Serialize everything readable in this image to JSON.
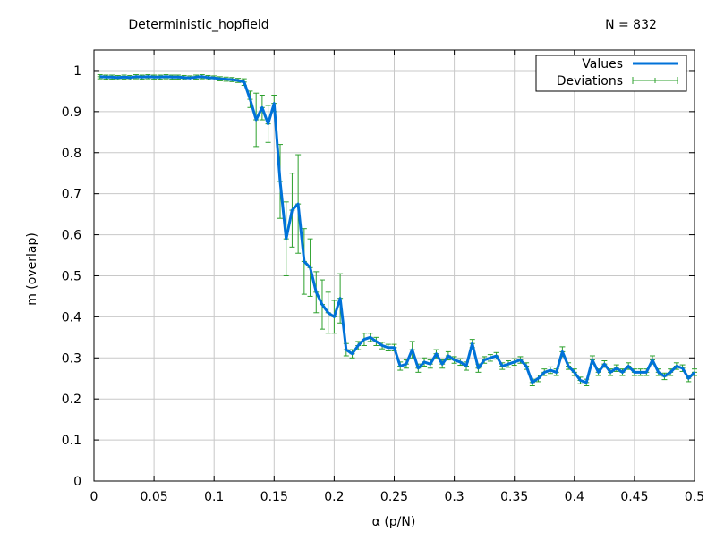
{
  "header": {
    "title": "Deterministic_hopfield",
    "n_label": "N = 832"
  },
  "chart_data": {
    "type": "line",
    "title": "Deterministic_hopfield",
    "subtitle": "N = 832",
    "xlabel": "α (p/N)",
    "ylabel": "m (overlap)",
    "xlim": [
      0,
      0.5
    ],
    "ylim": [
      0,
      1.05
    ],
    "grid": true,
    "legend_position": "top-right",
    "x_ticks": [
      "0",
      "0.05",
      "0.1",
      "0.15",
      "0.2",
      "0.25",
      "0.3",
      "0.35",
      "0.4",
      "0.45",
      "0.5"
    ],
    "y_ticks": [
      "0",
      "0.1",
      "0.2",
      "0.3",
      "0.4",
      "0.5",
      "0.6",
      "0.7",
      "0.8",
      "0.9",
      "1"
    ],
    "series": [
      {
        "name": "Values",
        "color": "#0072d8",
        "x": [
          0.005,
          0.01,
          0.015,
          0.02,
          0.025,
          0.03,
          0.035,
          0.04,
          0.045,
          0.05,
          0.055,
          0.06,
          0.065,
          0.07,
          0.075,
          0.08,
          0.085,
          0.09,
          0.095,
          0.1,
          0.105,
          0.11,
          0.115,
          0.12,
          0.125,
          0.13,
          0.135,
          0.14,
          0.145,
          0.15,
          0.155,
          0.16,
          0.165,
          0.17,
          0.175,
          0.18,
          0.185,
          0.19,
          0.195,
          0.2,
          0.205,
          0.21,
          0.215,
          0.22,
          0.225,
          0.23,
          0.235,
          0.24,
          0.245,
          0.25,
          0.255,
          0.26,
          0.265,
          0.27,
          0.275,
          0.28,
          0.285,
          0.29,
          0.295,
          0.3,
          0.305,
          0.31,
          0.315,
          0.32,
          0.325,
          0.33,
          0.335,
          0.34,
          0.345,
          0.35,
          0.355,
          0.36,
          0.365,
          0.37,
          0.375,
          0.38,
          0.385,
          0.39,
          0.395,
          0.4,
          0.405,
          0.41,
          0.415,
          0.42,
          0.425,
          0.43,
          0.435,
          0.44,
          0.445,
          0.45,
          0.455,
          0.46,
          0.465,
          0.47,
          0.475,
          0.48,
          0.485,
          0.49,
          0.495,
          0.5
        ],
        "values": [
          0.985,
          0.984,
          0.984,
          0.983,
          0.984,
          0.983,
          0.985,
          0.984,
          0.985,
          0.984,
          0.984,
          0.985,
          0.984,
          0.984,
          0.983,
          0.982,
          0.984,
          0.985,
          0.983,
          0.982,
          0.98,
          0.979,
          0.978,
          0.976,
          0.972,
          0.93,
          0.88,
          0.91,
          0.87,
          0.92,
          0.73,
          0.59,
          0.66,
          0.675,
          0.535,
          0.52,
          0.46,
          0.43,
          0.41,
          0.4,
          0.445,
          0.32,
          0.31,
          0.33,
          0.345,
          0.35,
          0.34,
          0.33,
          0.325,
          0.325,
          0.28,
          0.285,
          0.32,
          0.275,
          0.29,
          0.285,
          0.31,
          0.285,
          0.305,
          0.295,
          0.29,
          0.28,
          0.335,
          0.275,
          0.295,
          0.3,
          0.305,
          0.28,
          0.285,
          0.29,
          0.295,
          0.28,
          0.24,
          0.25,
          0.265,
          0.27,
          0.265,
          0.315,
          0.28,
          0.265,
          0.245,
          0.24,
          0.295,
          0.265,
          0.285,
          0.265,
          0.275,
          0.265,
          0.28,
          0.265,
          0.265,
          0.265,
          0.295,
          0.265,
          0.255,
          0.265,
          0.28,
          0.275,
          0.25,
          0.265
        ]
      },
      {
        "name": "Deviations",
        "color": "#2ca02c",
        "errors": [
          0.005,
          0.005,
          0.005,
          0.005,
          0.005,
          0.005,
          0.005,
          0.005,
          0.005,
          0.005,
          0.005,
          0.005,
          0.005,
          0.005,
          0.005,
          0.005,
          0.005,
          0.005,
          0.005,
          0.005,
          0.005,
          0.005,
          0.005,
          0.005,
          0.008,
          0.02,
          0.065,
          0.03,
          0.045,
          0.02,
          0.09,
          0.09,
          0.09,
          0.12,
          0.08,
          0.07,
          0.05,
          0.06,
          0.05,
          0.04,
          0.06,
          0.015,
          0.01,
          0.01,
          0.015,
          0.01,
          0.01,
          0.008,
          0.008,
          0.008,
          0.01,
          0.01,
          0.02,
          0.01,
          0.01,
          0.01,
          0.01,
          0.01,
          0.01,
          0.008,
          0.008,
          0.01,
          0.01,
          0.01,
          0.008,
          0.008,
          0.008,
          0.008,
          0.008,
          0.008,
          0.008,
          0.008,
          0.008,
          0.008,
          0.008,
          0.008,
          0.008,
          0.012,
          0.008,
          0.008,
          0.008,
          0.008,
          0.01,
          0.008,
          0.008,
          0.008,
          0.008,
          0.008,
          0.008,
          0.008,
          0.008,
          0.008,
          0.01,
          0.008,
          0.008,
          0.008,
          0.008,
          0.008,
          0.008,
          0.008
        ]
      }
    ]
  }
}
